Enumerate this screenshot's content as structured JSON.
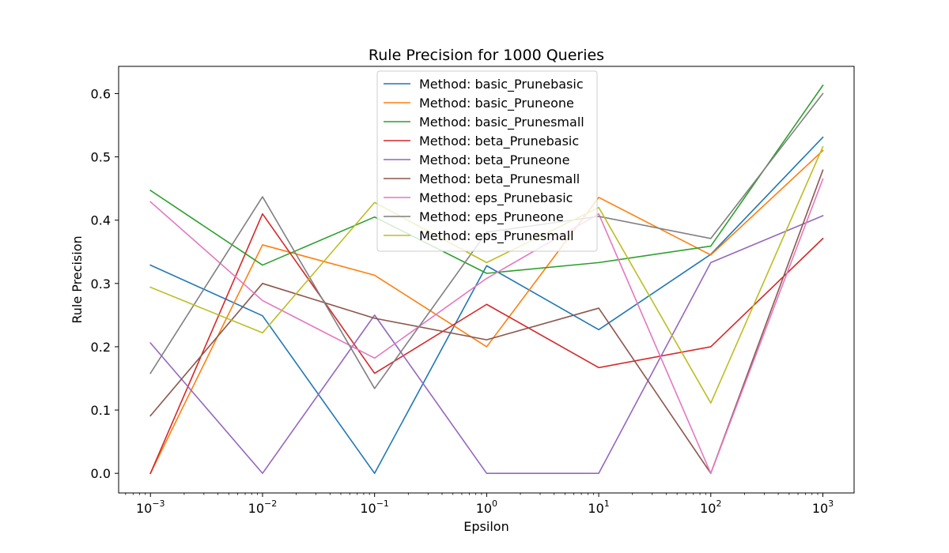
{
  "chart_data": {
    "type": "line",
    "title": "Rule Precision for 1000 Queries",
    "xlabel": "Epsilon",
    "ylabel": "Rule Precision",
    "x": [
      0.001,
      0.01,
      0.1,
      1,
      10,
      100,
      1000
    ],
    "xscale": "log",
    "x_tick_labels": [
      {
        "base": "10",
        "exp": "−3"
      },
      {
        "base": "10",
        "exp": "−2"
      },
      {
        "base": "10",
        "exp": "−1"
      },
      {
        "base": "10",
        "exp": "0"
      },
      {
        "base": "10",
        "exp": "1"
      },
      {
        "base": "10",
        "exp": "2"
      },
      {
        "base": "10",
        "exp": "3"
      }
    ],
    "xlim": [
      0.00052,
      1900
    ],
    "ylim": [
      -0.031,
      0.643
    ],
    "y_ticks": [
      0.0,
      0.1,
      0.2,
      0.3,
      0.4,
      0.5,
      0.6
    ],
    "y_tick_labels": [
      "0.0",
      "0.1",
      "0.2",
      "0.3",
      "0.4",
      "0.5",
      "0.6"
    ],
    "grid": false,
    "legend_position": "top-center",
    "series": [
      {
        "name": "Method: basic_Prunebasic",
        "color": "#1f77b4",
        "values": [
          0.329,
          0.249,
          0.0,
          0.328,
          0.227,
          0.346,
          0.531
        ]
      },
      {
        "name": "Method: basic_Pruneone",
        "color": "#ff7f0e",
        "values": [
          0.0,
          0.361,
          0.313,
          0.2,
          0.436,
          0.345,
          0.51
        ]
      },
      {
        "name": "Method: basic_Prunesmall",
        "color": "#2ca02c",
        "values": [
          0.447,
          0.329,
          0.405,
          0.316,
          0.333,
          0.359,
          0.613
        ]
      },
      {
        "name": "Method: beta_Prunebasic",
        "color": "#d62728",
        "values": [
          0.0,
          0.41,
          0.158,
          0.267,
          0.167,
          0.2,
          0.371
        ]
      },
      {
        "name": "Method: beta_Pruneone",
        "color": "#9467bd",
        "values": [
          0.206,
          0.0,
          0.25,
          0.0,
          0.0,
          0.333,
          0.407
        ]
      },
      {
        "name": "Method: beta_Prunesmall",
        "color": "#8c564b",
        "values": [
          0.091,
          0.3,
          0.245,
          0.211,
          0.261,
          0.0,
          0.479
        ]
      },
      {
        "name": "Method: eps_Prunebasic",
        "color": "#e377c2",
        "values": [
          0.429,
          0.273,
          0.182,
          0.308,
          0.41,
          0.0,
          0.465
        ]
      },
      {
        "name": "Method: eps_Pruneone",
        "color": "#7f7f7f",
        "values": [
          0.158,
          0.437,
          0.134,
          0.381,
          0.406,
          0.371,
          0.6
        ]
      },
      {
        "name": "Method: eps_Prunesmall",
        "color": "#bcbd22",
        "values": [
          0.294,
          0.222,
          0.428,
          0.333,
          0.42,
          0.111,
          0.516
        ]
      }
    ]
  }
}
